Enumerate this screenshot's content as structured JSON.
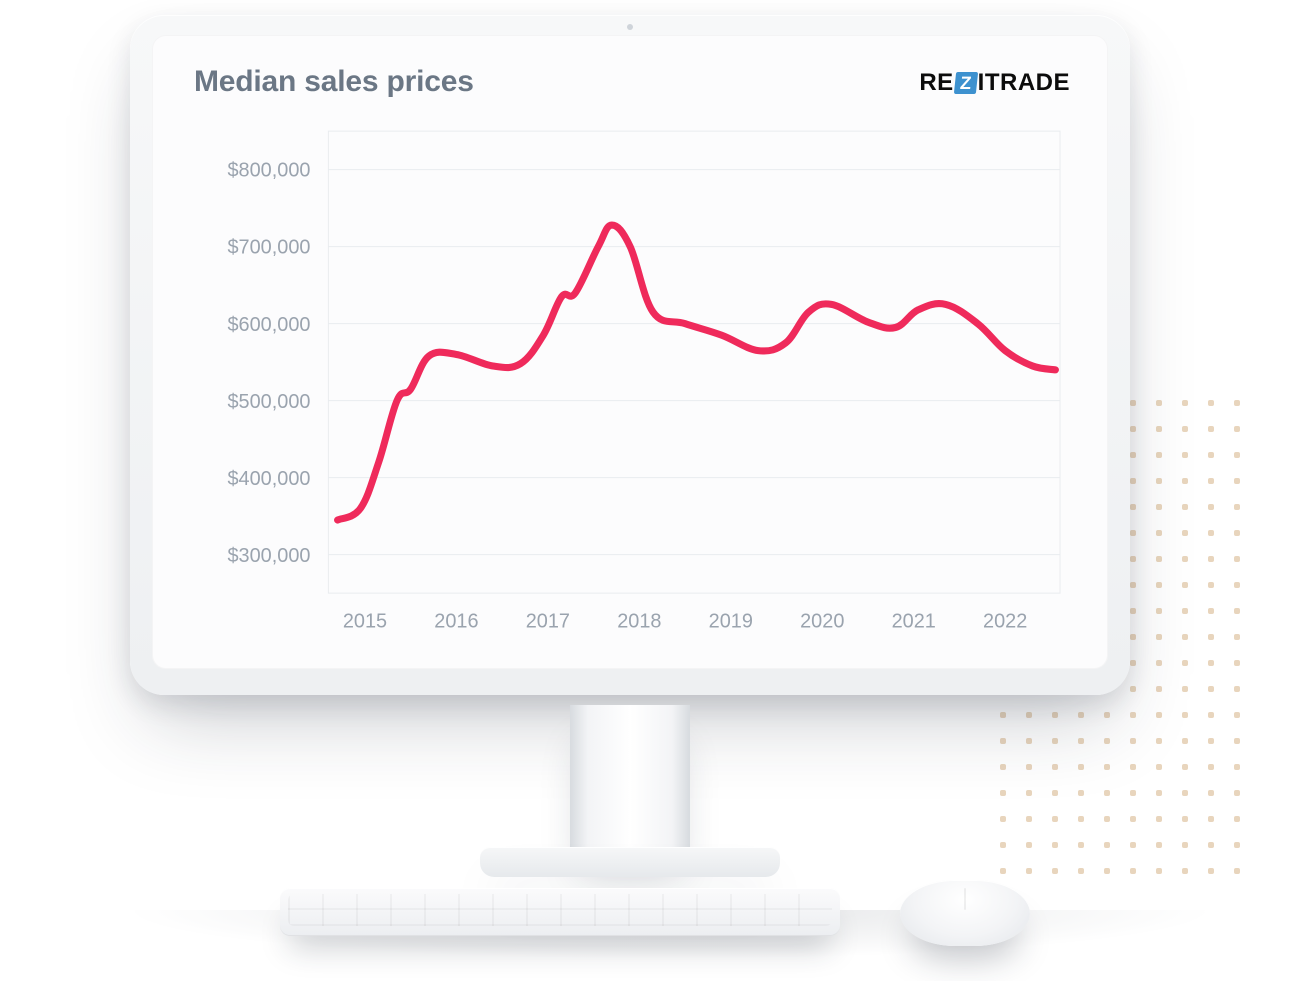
{
  "title": "Median sales prices",
  "logo": {
    "pre": "RE",
    "mid": "Z",
    "post": "ITRADE",
    "accent": "#3d91cf",
    "text_color": "#0c0c0c"
  },
  "chart": {
    "type": "line",
    "background_color": "#fcfcfd",
    "grid_color": "#e9ecef",
    "axis_label_color": "#9aa3ae",
    "axis_fontsize": 20,
    "line_color": "#ef2a5b",
    "line_width": 7,
    "y": {
      "min": 250000,
      "max": 850000,
      "ticks": [
        300000,
        400000,
        500000,
        600000,
        700000,
        800000
      ],
      "tick_labels": [
        "$300,000",
        "$400,000",
        "$500,000",
        "$600,000",
        "$700,000",
        "$800,000"
      ]
    },
    "x": {
      "min": 2014.6,
      "max": 2022.6,
      "ticks": [
        2015,
        2016,
        2017,
        2018,
        2019,
        2020,
        2021,
        2022
      ],
      "tick_labels": [
        "2015",
        "2016",
        "2017",
        "2018",
        "2019",
        "2020",
        "2021",
        "2022"
      ]
    },
    "series": [
      {
        "name": "median_price",
        "points": [
          [
            2014.7,
            345000
          ],
          [
            2014.95,
            360000
          ],
          [
            2015.15,
            420000
          ],
          [
            2015.35,
            500000
          ],
          [
            2015.5,
            515000
          ],
          [
            2015.7,
            558000
          ],
          [
            2016.0,
            560000
          ],
          [
            2016.4,
            545000
          ],
          [
            2016.7,
            548000
          ],
          [
            2016.95,
            585000
          ],
          [
            2017.15,
            635000
          ],
          [
            2017.3,
            640000
          ],
          [
            2017.55,
            700000
          ],
          [
            2017.7,
            728000
          ],
          [
            2017.9,
            700000
          ],
          [
            2018.15,
            615000
          ],
          [
            2018.5,
            600000
          ],
          [
            2018.9,
            585000
          ],
          [
            2019.3,
            565000
          ],
          [
            2019.6,
            575000
          ],
          [
            2019.85,
            615000
          ],
          [
            2020.1,
            625000
          ],
          [
            2020.5,
            602000
          ],
          [
            2020.8,
            595000
          ],
          [
            2021.05,
            618000
          ],
          [
            2021.35,
            625000
          ],
          [
            2021.7,
            600000
          ],
          [
            2022.0,
            565000
          ],
          [
            2022.3,
            545000
          ],
          [
            2022.55,
            540000
          ]
        ]
      }
    ]
  },
  "decor": {
    "dot_color": "#e8d5bd",
    "dot_cols": 10,
    "dot_rows": 19
  }
}
